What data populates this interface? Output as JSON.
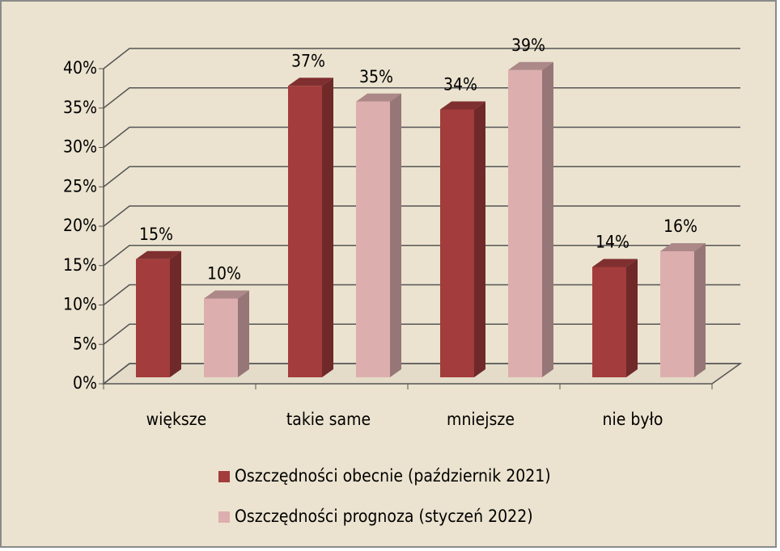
{
  "chart_data": {
    "type": "bar3d",
    "categories": [
      "większe",
      "takie same",
      "mniejsze",
      "nie było"
    ],
    "series": [
      {
        "name": "Oszczędności obecnie (październik 2021)",
        "color": "#a33c3c",
        "values": [
          15,
          37,
          34,
          14
        ],
        "value_labels": [
          "15%",
          "37%",
          "34%",
          "14%"
        ]
      },
      {
        "name": "Oszczędności prognoza (styczeń 2022)",
        "color": "#ddaeae",
        "values": [
          10,
          35,
          39,
          16
        ],
        "value_labels": [
          "10%",
          "35%",
          "39%",
          "16%"
        ]
      }
    ],
    "ylim": [
      0,
      40
    ],
    "yticks": [
      {
        "value": 0,
        "label": "0%"
      },
      {
        "value": 5,
        "label": "5%"
      },
      {
        "value": 10,
        "label": "10%"
      },
      {
        "value": 15,
        "label": "15%"
      },
      {
        "value": 20,
        "label": "20%"
      },
      {
        "value": 25,
        "label": "25%"
      },
      {
        "value": 30,
        "label": "30%"
      },
      {
        "value": 35,
        "label": "35%"
      },
      {
        "value": 40,
        "label": "40%"
      }
    ],
    "grid": true,
    "legend": "bottom"
  }
}
